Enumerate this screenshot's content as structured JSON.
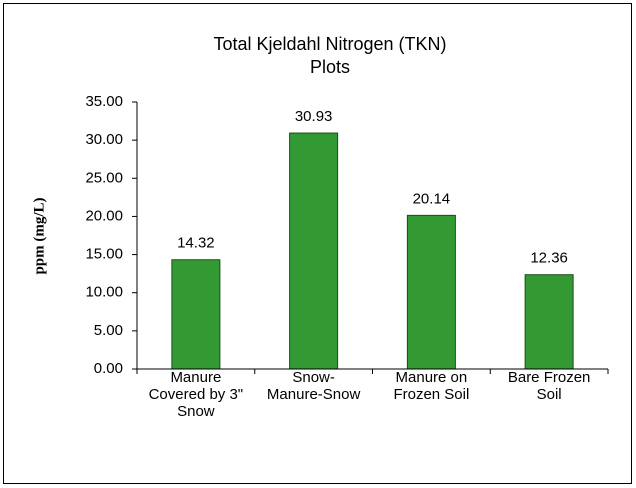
{
  "chart_data": {
    "type": "bar",
    "title": "Total Kjeldahl Nitrogen (TKN)",
    "subtitle": "Plots",
    "y_label": "ppm (mg/L)",
    "categories": [
      "Manure\nCovered by 3\"\nSnow",
      "Snow-\nManure-Snow",
      "Manure on\nFrozen Soil",
      "Bare Frozen\nSoil"
    ],
    "values": [
      14.32,
      30.93,
      20.14,
      12.36
    ],
    "color": "#339933",
    "ylim": [
      0,
      35
    ],
    "yticks": [
      {
        "value": 0,
        "label": "0.00"
      },
      {
        "value": 5,
        "label": "5.00"
      },
      {
        "value": 10,
        "label": "10.00"
      },
      {
        "value": 15,
        "label": "15.00"
      },
      {
        "value": 20,
        "label": "20.00"
      },
      {
        "value": 25,
        "label": "25.00"
      },
      {
        "value": 30,
        "label": "30.00"
      },
      {
        "value": 35,
        "label": "35.00"
      }
    ],
    "grid": false
  }
}
